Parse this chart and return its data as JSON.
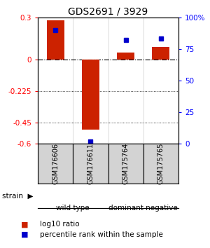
{
  "title": "GDS2691 / 3929",
  "samples": [
    "GSM176606",
    "GSM176611",
    "GSM175764",
    "GSM175765"
  ],
  "log10_ratio": [
    0.28,
    -0.5,
    0.05,
    0.09
  ],
  "percentile_rank": [
    90,
    2,
    82,
    83
  ],
  "ylim_left": [
    -0.6,
    0.3
  ],
  "ylim_right": [
    0,
    100
  ],
  "left_ticks": [
    0.3,
    0,
    -0.225,
    -0.45,
    -0.6
  ],
  "right_ticks": [
    100,
    75,
    50,
    25,
    0
  ],
  "dotted_lines": [
    -0.225,
    -0.45
  ],
  "groups": [
    {
      "label": "wild type",
      "samples": [
        0,
        1
      ],
      "color": "#90EE90"
    },
    {
      "label": "dominant negative",
      "samples": [
        2,
        3
      ],
      "color": "#66CC66"
    }
  ],
  "bar_color_red": "#CC2200",
  "bar_color_blue": "#0000CC",
  "title_fontsize": 10,
  "tick_fontsize": 7.5,
  "sample_fontsize": 7,
  "group_fontsize": 7.5,
  "legend_fontsize": 7.5
}
